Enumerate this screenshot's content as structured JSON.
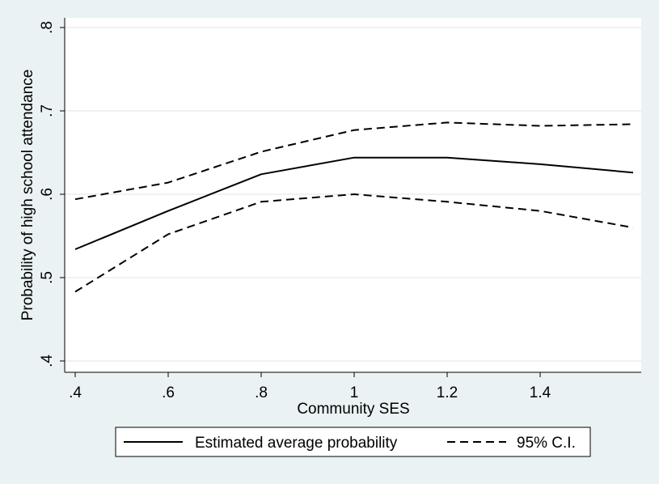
{
  "chart_data": {
    "type": "line",
    "title": "",
    "xlabel": "Community SES",
    "ylabel": "Probability of high school attendance",
    "xlim": [
      0.4,
      1.6
    ],
    "ylim": [
      0.4,
      0.8
    ],
    "x_ticks": [
      0.4,
      0.6,
      0.8,
      1.0,
      1.2,
      1.4
    ],
    "x_tick_labels": [
      ".4",
      ".6",
      ".8",
      "1",
      "1.2",
      "1.4"
    ],
    "y_ticks": [
      0.4,
      0.5,
      0.6,
      0.7,
      0.8
    ],
    "y_tick_labels": [
      ".4",
      ".5",
      ".6",
      ".7",
      ".8"
    ],
    "grid": true,
    "legend_position": "bottom",
    "series": [
      {
        "name": "Estimated average probability",
        "style": "solid",
        "x": [
          0.4,
          0.6,
          0.8,
          1.0,
          1.2,
          1.4,
          1.6
        ],
        "y": [
          0.534,
          0.58,
          0.624,
          0.644,
          0.644,
          0.636,
          0.626
        ]
      },
      {
        "name": "95% C.I.",
        "style": "dashed",
        "x": [
          0.4,
          0.6,
          0.8,
          1.0,
          1.2,
          1.4,
          1.6
        ],
        "y": [
          0.594,
          0.614,
          0.651,
          0.677,
          0.686,
          0.682,
          0.684
        ]
      },
      {
        "name": "",
        "style": "dashed",
        "x": [
          0.4,
          0.6,
          0.8,
          1.0,
          1.2,
          1.4,
          1.6
        ],
        "y": [
          0.483,
          0.552,
          0.591,
          0.6,
          0.591,
          0.58,
          0.56
        ]
      }
    ],
    "legend": [
      "Estimated average probability",
      "95% C.I."
    ],
    "colors": {
      "background": "#eaf2f3",
      "plot_background": "#ffffff",
      "line": "#000000",
      "grid": "#e8eeee"
    }
  }
}
